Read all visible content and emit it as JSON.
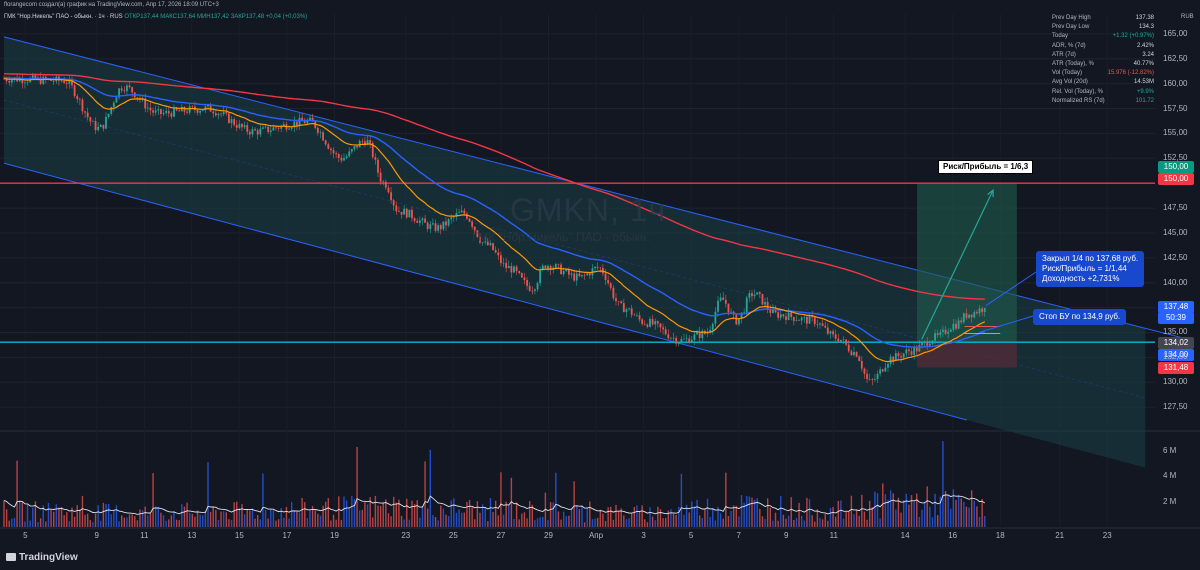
{
  "header": {
    "text": "florangecom создал(а) график на TradingView.com, Апр 17, 2026 18:09 UTC+3",
    "legend_symbol": "ГМК \"Нор.Никель\" ПАО - обыкн. · 1ч · RUS",
    "legend_values": "ОТКР137,44 МАКС137,64 МИН137,42 ЗАКР137,48 +0,04 (+0,03%)"
  },
  "watermark": {
    "ticker": "GMKN, 1ч",
    "name": "ГМК \"Нор.Никель\" ПАО - обыкн."
  },
  "stats_table": {
    "rows": [
      {
        "label": "Prev Day High",
        "value": "137.38",
        "color": "#d1d4dc"
      },
      {
        "label": "Prev Day Low",
        "value": "134.3",
        "color": "#d1d4dc"
      },
      {
        "label": "Today",
        "value": "+1.32 (+0.97%)",
        "color": "#26a69a"
      },
      {
        "label": "ADR, % (7d)",
        "value": "2.42%",
        "color": "#d1d4dc"
      },
      {
        "label": "ATR (7d)",
        "value": "3.24",
        "color": "#d1d4dc"
      },
      {
        "label": "ATR (Today), %",
        "value": "40.77%",
        "color": "#d1d4dc"
      },
      {
        "label": "Vol (Today)",
        "value": "15.976 (-12.82%)",
        "color": "#ef5350"
      },
      {
        "label": "Avg Vol (20d)",
        "value": "14.53M",
        "color": "#d1d4dc"
      },
      {
        "label": "Rel. Vol (Today), %",
        "value": "+9.9%",
        "color": "#26a69a"
      },
      {
        "label": "Normalized RS (7d)",
        "value": "101.72",
        "color": "#26a69a"
      }
    ],
    "currency": "RUB"
  },
  "annotations": {
    "risk_reward_main": "Риск/Прибыль = 1/6,3",
    "closed_note_line1": "Закрыл 1/4 по 137,68 руб.",
    "closed_note_line2": "Риск/Прибыль = 1/1,44",
    "closed_note_line3": "Доходность +2,731%",
    "stop_note": "Стоп БУ по 134,9 руб."
  },
  "price_labels": {
    "target": {
      "text": "150,00",
      "color": "#089981"
    },
    "resistance": {
      "text": "150,00",
      "color": "#f23645"
    },
    "last": {
      "text": "137,48",
      "color": "#2962ff"
    },
    "countdown": "50:39",
    "level1": {
      "text": "134,02",
      "color": "#434651"
    },
    "level2": {
      "text": "134,00",
      "color": "#2962ff"
    },
    "stop": {
      "text": "131,48",
      "color": "#f23645"
    }
  },
  "colors": {
    "background": "#131722",
    "channel": "#2962ff",
    "ma_red": "#f23645",
    "ma_blue": "#2962ff",
    "ma_orange": "#ff9800",
    "support_line": "#00bcd4",
    "resistance_line": "#f23645",
    "candle_up": "#26a69a",
    "candle_down": "#ef5350"
  },
  "footer": {
    "logo": "TradingView"
  },
  "chart_data": {
    "type": "candlestick",
    "title": "GMKN, 1ч",
    "y_ticks": [
      165,
      162.5,
      160,
      157.5,
      155,
      152.5,
      150,
      147.5,
      145,
      142.5,
      140,
      137.5,
      135,
      132.5,
      130,
      127.5
    ],
    "y_tick_labels": [
      "165,00",
      "162,50",
      "160,00",
      "157,50",
      "155,00",
      "152,50",
      "",
      "147,50",
      "145,00",
      "142,50",
      "140,00",
      "",
      "135,00",
      "132,50",
      "130,00",
      "127,50"
    ],
    "ylim": [
      125.4,
      167.0
    ],
    "x_ticks": [
      "5",
      "9",
      "11",
      "13",
      "15",
      "17",
      "19",
      "23",
      "25",
      "27",
      "29",
      "Апр",
      "3",
      "5",
      "7",
      "9",
      "11",
      "14",
      "16",
      "18",
      "21",
      "23"
    ],
    "x_tick_positions": [
      0.9,
      3.9,
      5.9,
      7.9,
      9.9,
      11.9,
      13.9,
      16.9,
      18.9,
      20.9,
      22.9,
      24.9,
      26.9,
      28.9,
      30.9,
      32.9,
      34.9,
      37.9,
      39.9,
      41.9,
      44.4,
      46.4
    ],
    "volume_ticks": [
      "6 M",
      "4 M",
      "2 M"
    ],
    "volume_tick_values": [
      6,
      4,
      2
    ],
    "horizontal_levels": [
      {
        "price": 150.0,
        "color": "#f23645"
      },
      {
        "price": 134.02,
        "color": "#00bcd4"
      }
    ],
    "channel_upper": [
      [
        0,
        164.7
      ],
      [
        50,
        134.2
      ]
    ],
    "channel_lower": [
      [
        0,
        152.0
      ],
      [
        40.5,
        126.2
      ]
    ],
    "key_points": [
      {
        "t": 0,
        "price": 160.5
      },
      {
        "t": 2.5,
        "price": 160.3
      },
      {
        "t": 4,
        "price": 155.5
      },
      {
        "t": 5,
        "price": 159.7
      },
      {
        "t": 6.5,
        "price": 157.0
      },
      {
        "t": 8.5,
        "price": 157.5
      },
      {
        "t": 10.5,
        "price": 155.2
      },
      {
        "t": 12.8,
        "price": 156.2
      },
      {
        "t": 14.2,
        "price": 152.5
      },
      {
        "t": 15.2,
        "price": 154.3
      },
      {
        "t": 16,
        "price": 150.0
      },
      {
        "t": 16.6,
        "price": 147.2
      },
      {
        "t": 18.2,
        "price": 145.5
      },
      {
        "t": 19.3,
        "price": 147.0
      },
      {
        "t": 20.3,
        "price": 143.8
      },
      {
        "t": 21.2,
        "price": 141.5
      },
      {
        "t": 22.2,
        "price": 139.5
      },
      {
        "t": 22.8,
        "price": 141.8
      },
      {
        "t": 24.2,
        "price": 140.5
      },
      {
        "t": 25,
        "price": 141.5
      },
      {
        "t": 26,
        "price": 137.5
      },
      {
        "t": 27,
        "price": 136.0
      },
      {
        "t": 28.5,
        "price": 134.2
      },
      {
        "t": 29.5,
        "price": 134.9
      },
      {
        "t": 30.2,
        "price": 138.3
      },
      {
        "t": 30.8,
        "price": 136.2
      },
      {
        "t": 31.5,
        "price": 138.9
      },
      {
        "t": 32.5,
        "price": 136.8
      },
      {
        "t": 34,
        "price": 136.2
      },
      {
        "t": 35,
        "price": 134.5
      },
      {
        "t": 35.8,
        "price": 133.0
      },
      {
        "t": 36.4,
        "price": 130.0
      },
      {
        "t": 37.4,
        "price": 132.5
      },
      {
        "t": 38.2,
        "price": 133.2
      },
      {
        "t": 39.2,
        "price": 134.5
      },
      {
        "t": 40,
        "price": 135.8
      },
      {
        "t": 40.6,
        "price": 136.9
      },
      {
        "t": 41.3,
        "price": 137.48
      }
    ],
    "volume_key_points": [
      {
        "t": 0,
        "v": 1.6
      },
      {
        "t": 5,
        "v": 1.4
      },
      {
        "t": 10,
        "v": 1.5
      },
      {
        "t": 16,
        "v": 2.0
      },
      {
        "t": 22,
        "v": 1.6
      },
      {
        "t": 27,
        "v": 1.3
      },
      {
        "t": 31,
        "v": 2.2
      },
      {
        "t": 35,
        "v": 1.5
      },
      {
        "t": 37,
        "v": 2.6
      },
      {
        "t": 40,
        "v": 2.3
      },
      {
        "t": 41.3,
        "v": 2.2
      }
    ],
    "position_tool": {
      "t_start": 38.4,
      "t_end": 42.6,
      "entry": 133.95,
      "target": 150.0,
      "stop": 131.48,
      "arrow_from": [
        38.6,
        134.3
      ],
      "arrow_to": [
        41.6,
        149.3
      ]
    },
    "series": [
      {
        "name": "MA red",
        "period": 200,
        "color": "#f23645"
      },
      {
        "name": "MA blue",
        "period": 50,
        "color": "#2962ff"
      },
      {
        "name": "MA orange",
        "period": 20,
        "color": "#ff9800"
      }
    ]
  }
}
